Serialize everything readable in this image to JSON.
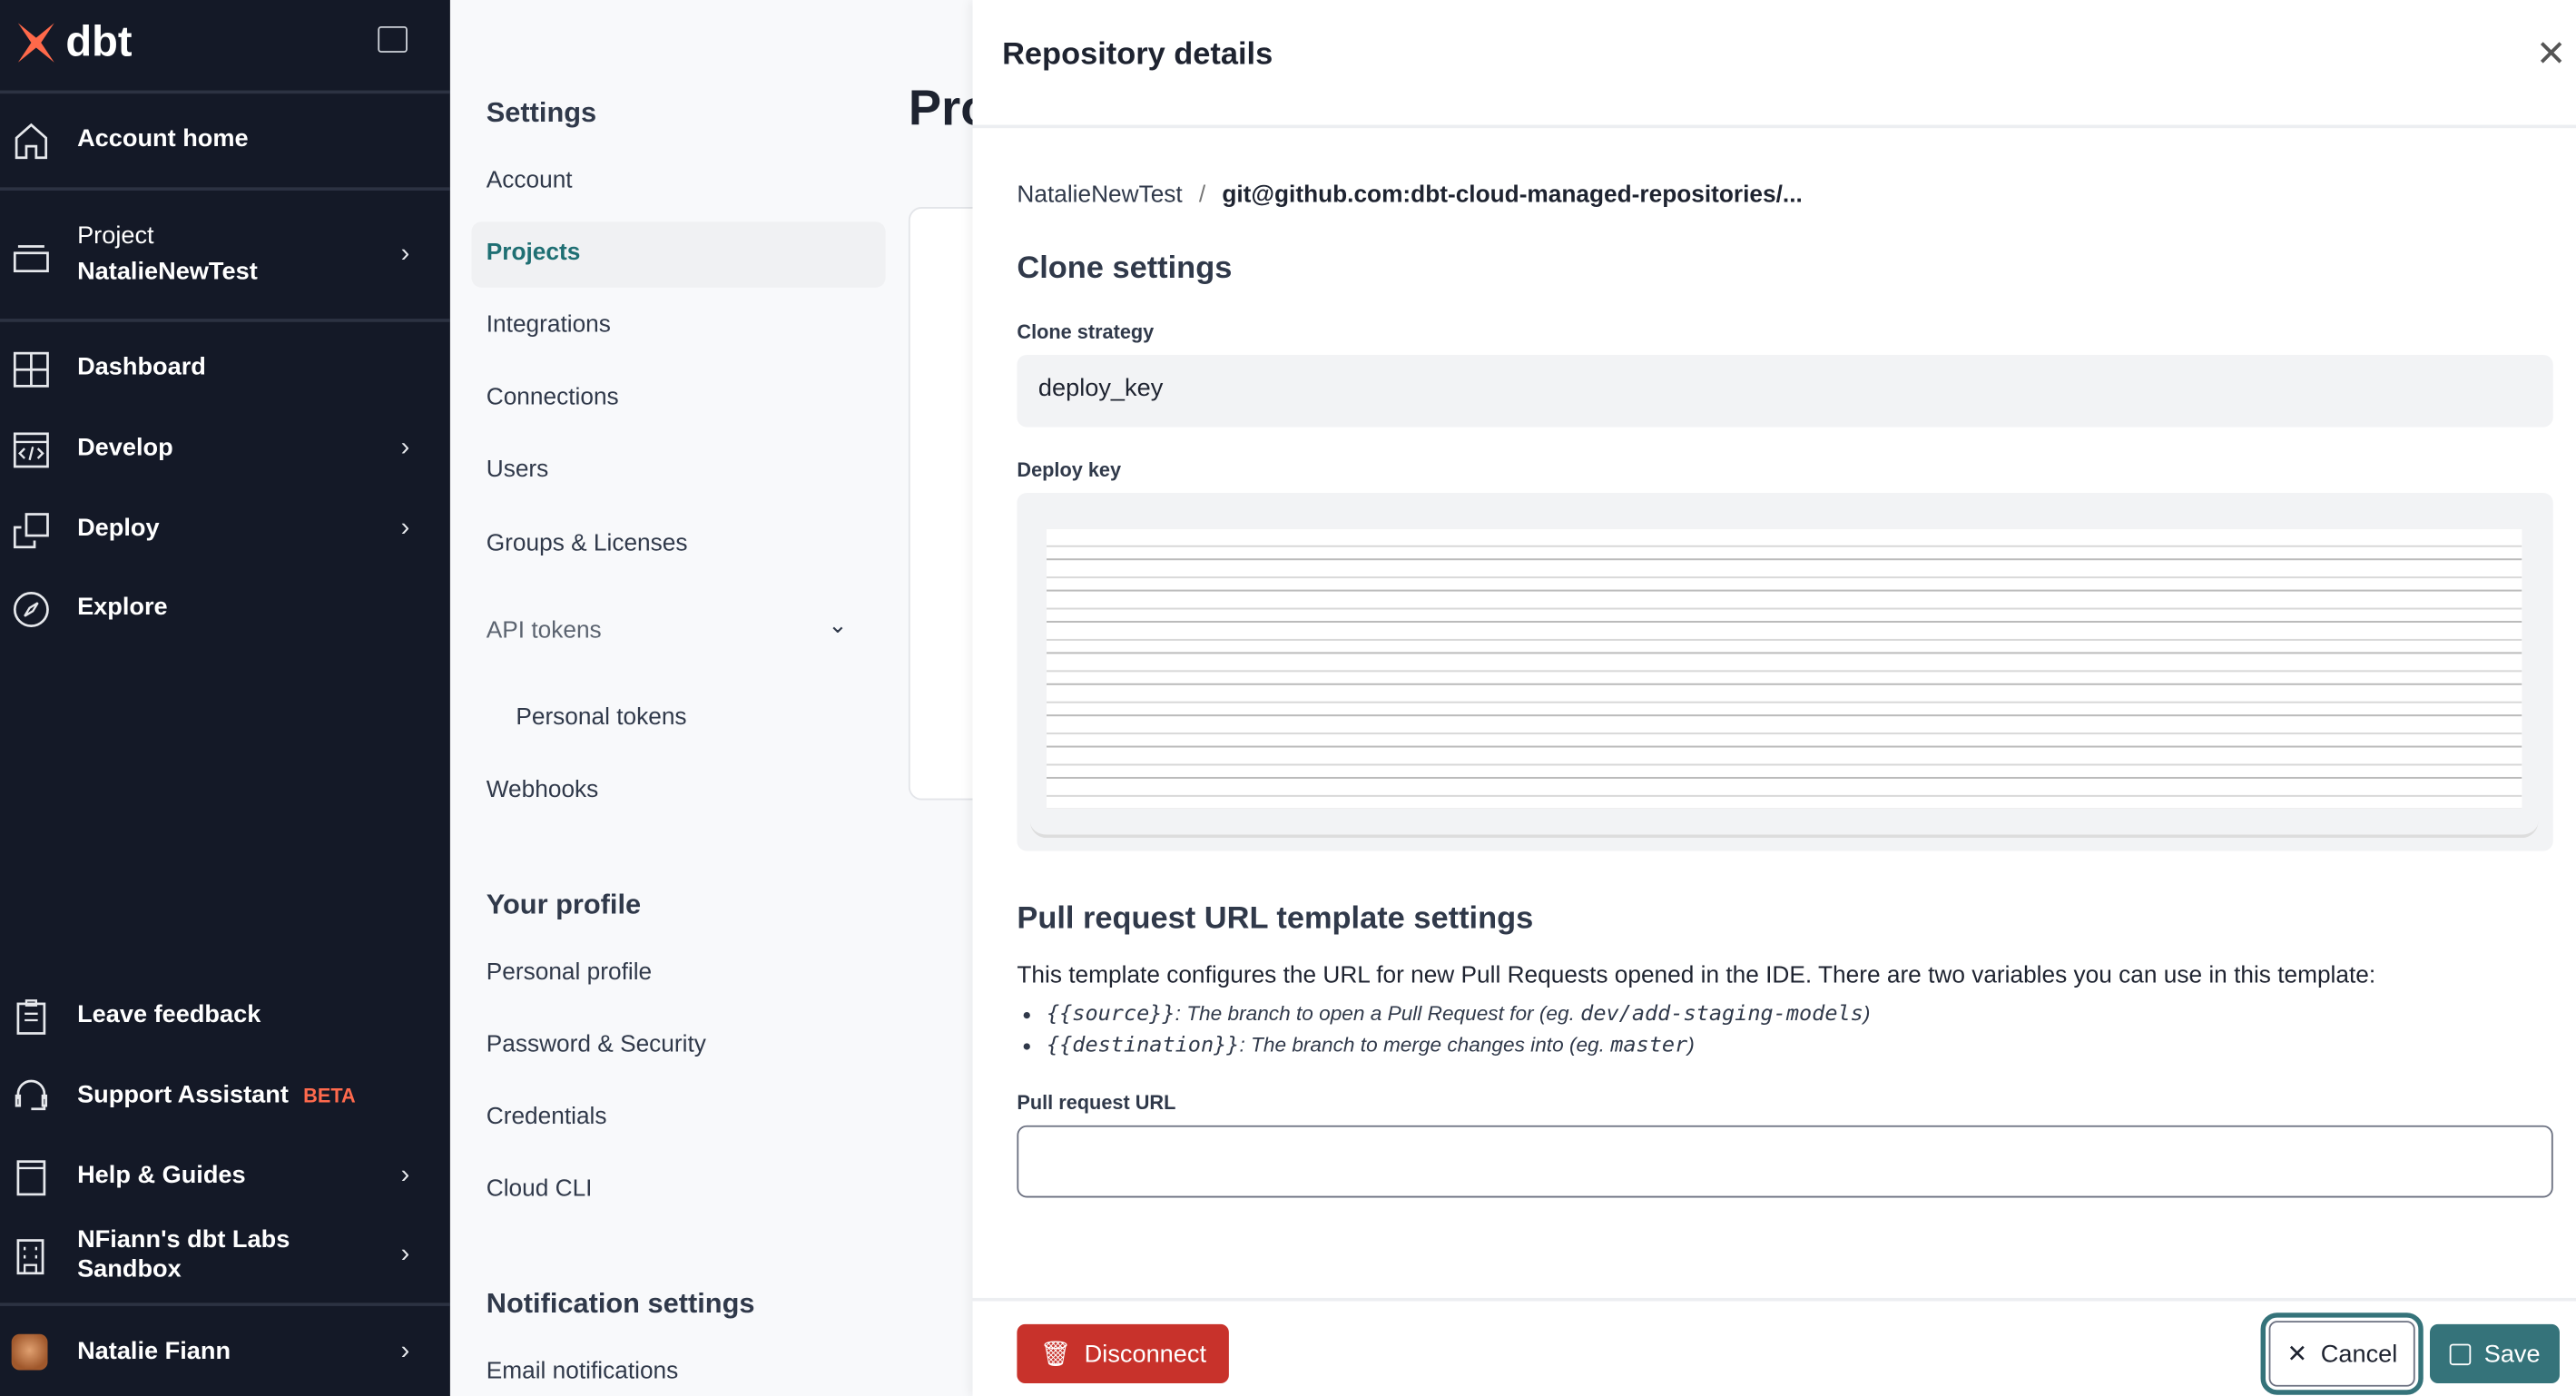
{
  "brand": {
    "name": "dbt",
    "accent": "#ff694a"
  },
  "sidebar": {
    "items": [
      {
        "label": "Account home",
        "icon": "home-icon"
      },
      {
        "label": "Project",
        "sub": "NatalieNewTest",
        "icon": "layers-icon"
      },
      {
        "label": "Dashboard",
        "icon": "dashboard-icon"
      },
      {
        "label": "Develop",
        "icon": "code-icon"
      },
      {
        "label": "Deploy",
        "icon": "deploy-icon"
      },
      {
        "label": "Explore",
        "icon": "compass-icon"
      }
    ],
    "bottom": [
      {
        "label": "Leave feedback",
        "icon": "clipboard-icon"
      },
      {
        "label": "Support Assistant",
        "badge": "BETA",
        "icon": "headset-icon"
      },
      {
        "label": "Help & Guides",
        "icon": "book-icon"
      },
      {
        "label": "NFiann's dbt Labs Sandbox",
        "icon": "building-icon"
      }
    ],
    "user": "Natalie Fiann"
  },
  "settings": {
    "title": "Settings",
    "items": [
      "Account",
      "Projects",
      "Integrations",
      "Connections",
      "Users",
      "Groups & Licenses",
      "API tokens",
      "Personal tokens",
      "Webhooks"
    ],
    "profile_title": "Your profile",
    "profile_items": [
      "Personal profile",
      "Password & Security",
      "Credentials",
      "Cloud CLI"
    ],
    "notif_title": "Notification settings",
    "notif_items": [
      "Email notifications"
    ]
  },
  "page_title_partial": "Pro",
  "drawer": {
    "title": "Repository details",
    "breadcrumb": {
      "project": "NatalieNewTest",
      "sep": "/",
      "repo": "git@github.com:dbt-cloud-managed-repositories/..."
    },
    "clone_title": "Clone settings",
    "clone_strategy_label": "Clone strategy",
    "clone_strategy_value": "deploy_key",
    "deploy_key_label": "Deploy key",
    "pr_title": "Pull request URL template settings",
    "pr_desc": "This template configures the URL for new Pull Requests opened in the IDE. There are two variables you can use in this template:",
    "vars": [
      {
        "code": "{{source}}",
        "text": ": The branch to open a Pull Request for (eg. ",
        "example": "dev/add-staging-models",
        "close": ")"
      },
      {
        "code": "{{destination}}",
        "text": ": The branch to merge changes into (eg. ",
        "example": "master",
        "close": ")"
      }
    ],
    "pr_url_label": "Pull request URL",
    "pr_url_value": "",
    "disconnect": "Disconnect",
    "cancel": "Cancel",
    "save": "Save"
  }
}
